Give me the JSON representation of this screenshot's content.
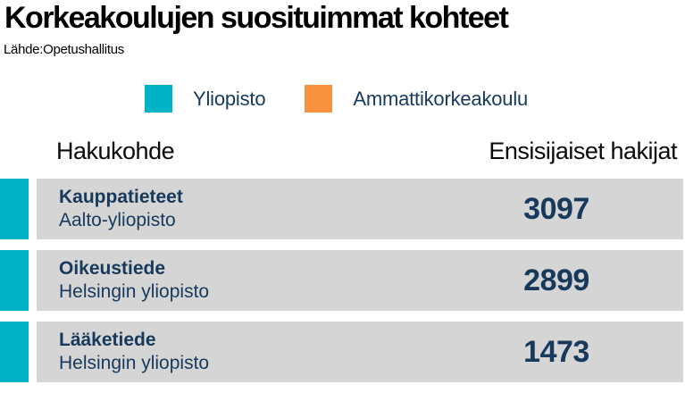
{
  "header": {
    "title": "Korkeakoulujen suosituimmat kohteet",
    "source": "Lähde:Opetushallitus"
  },
  "legend": {
    "items": [
      {
        "label": "Yliopisto",
        "color": "#00b2c6"
      },
      {
        "label": "Ammattikorkeakoulu",
        "color": "#f9923e"
      }
    ]
  },
  "table": {
    "columns": {
      "left": "Hakukohde",
      "right": "Ensisijaiset hakijat"
    },
    "rows": [
      {
        "name": "Kauppatieteet",
        "institution": "Aalto-yliopisto",
        "value": "3097",
        "category": "Yliopisto",
        "indicator_color": "#00b2c6"
      },
      {
        "name": "Oikeustiede",
        "institution": "Helsingin yliopisto",
        "value": "2899",
        "category": "Yliopisto",
        "indicator_color": "#00b2c6"
      },
      {
        "name": "Lääketiede",
        "institution": "Helsingin yliopisto",
        "value": "1473",
        "category": "Yliopisto",
        "indicator_color": "#00b2c6"
      }
    ]
  },
  "colors": {
    "yliopisto_teal": "#00b2c6",
    "ammattikorkeakoulu_orange": "#f9923e",
    "row_background_gray": "#d5d5d5",
    "navy_text": "#16395c",
    "title_black": "#000000"
  },
  "chart_data": {
    "type": "table",
    "title": "Korkeakoulujen suosituimmat kohteet",
    "source": "Lähde:Opetushallitus",
    "legend_entries": [
      "Yliopisto",
      "Ammattikorkeakoulu"
    ],
    "columns": [
      "Hakukohde",
      "Ensisijaiset hakijat"
    ],
    "categories": [
      "Kauppatieteet (Aalto-yliopisto)",
      "Oikeustiede (Helsingin yliopisto)",
      "Lääketiede (Helsingin yliopisto)"
    ],
    "values": [
      3097,
      2899,
      1473
    ],
    "series_category_per_row": [
      "Yliopisto",
      "Yliopisto",
      "Yliopisto"
    ]
  }
}
